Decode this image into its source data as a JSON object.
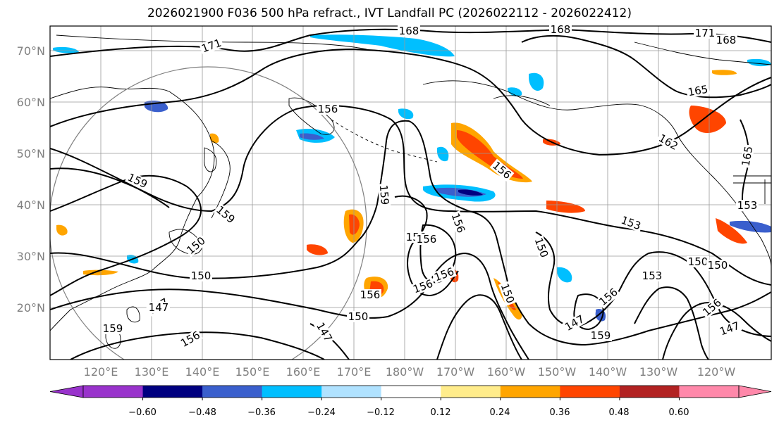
{
  "title": "2026021900 F036 500 hPa refract., IVT Landfall PC (2026022112 - 2026022412)",
  "lat_labels": [
    "70°N",
    "60°N",
    "50°N",
    "40°N",
    "30°N",
    "20°N"
  ],
  "lon_labels": [
    "120°E",
    "130°E",
    "140°E",
    "150°E",
    "160°E",
    "170°E",
    "180°W",
    "170°W",
    "160°W",
    "150°W",
    "140°W",
    "130°W",
    "120°W"
  ],
  "colorbar": {
    "tick_labels": [
      "−0.60",
      "−0.48",
      "−0.36",
      "−0.24",
      "−0.12",
      "0.12",
      "0.24",
      "0.36",
      "0.48",
      "0.60"
    ],
    "colors": [
      "#9933cc",
      "#000080",
      "#3a5fcd",
      "#00bfff",
      "#b0e2ff",
      "#ffffff",
      "#ffec8b",
      "#ffa500",
      "#ff4500",
      "#b22222",
      "#ff88aa"
    ]
  },
  "contour_labels": [
    "168",
    "168",
    "171",
    "168",
    "171",
    "156",
    "165",
    "159",
    "159",
    "156",
    "162",
    "165",
    "159",
    "156",
    "150",
    "153",
    "150",
    "150",
    "153",
    "150",
    "147",
    "156",
    "156",
    "156",
    "150",
    "147",
    "156",
    "147",
    "159",
    "156",
    "156",
    "156",
    "153",
    "150",
    "147",
    "159",
    "156",
    "150",
    "147"
  ],
  "colors": {
    "frame": "#000000",
    "grid": "#999999",
    "contour": "#000000",
    "circle": "#808080"
  }
}
